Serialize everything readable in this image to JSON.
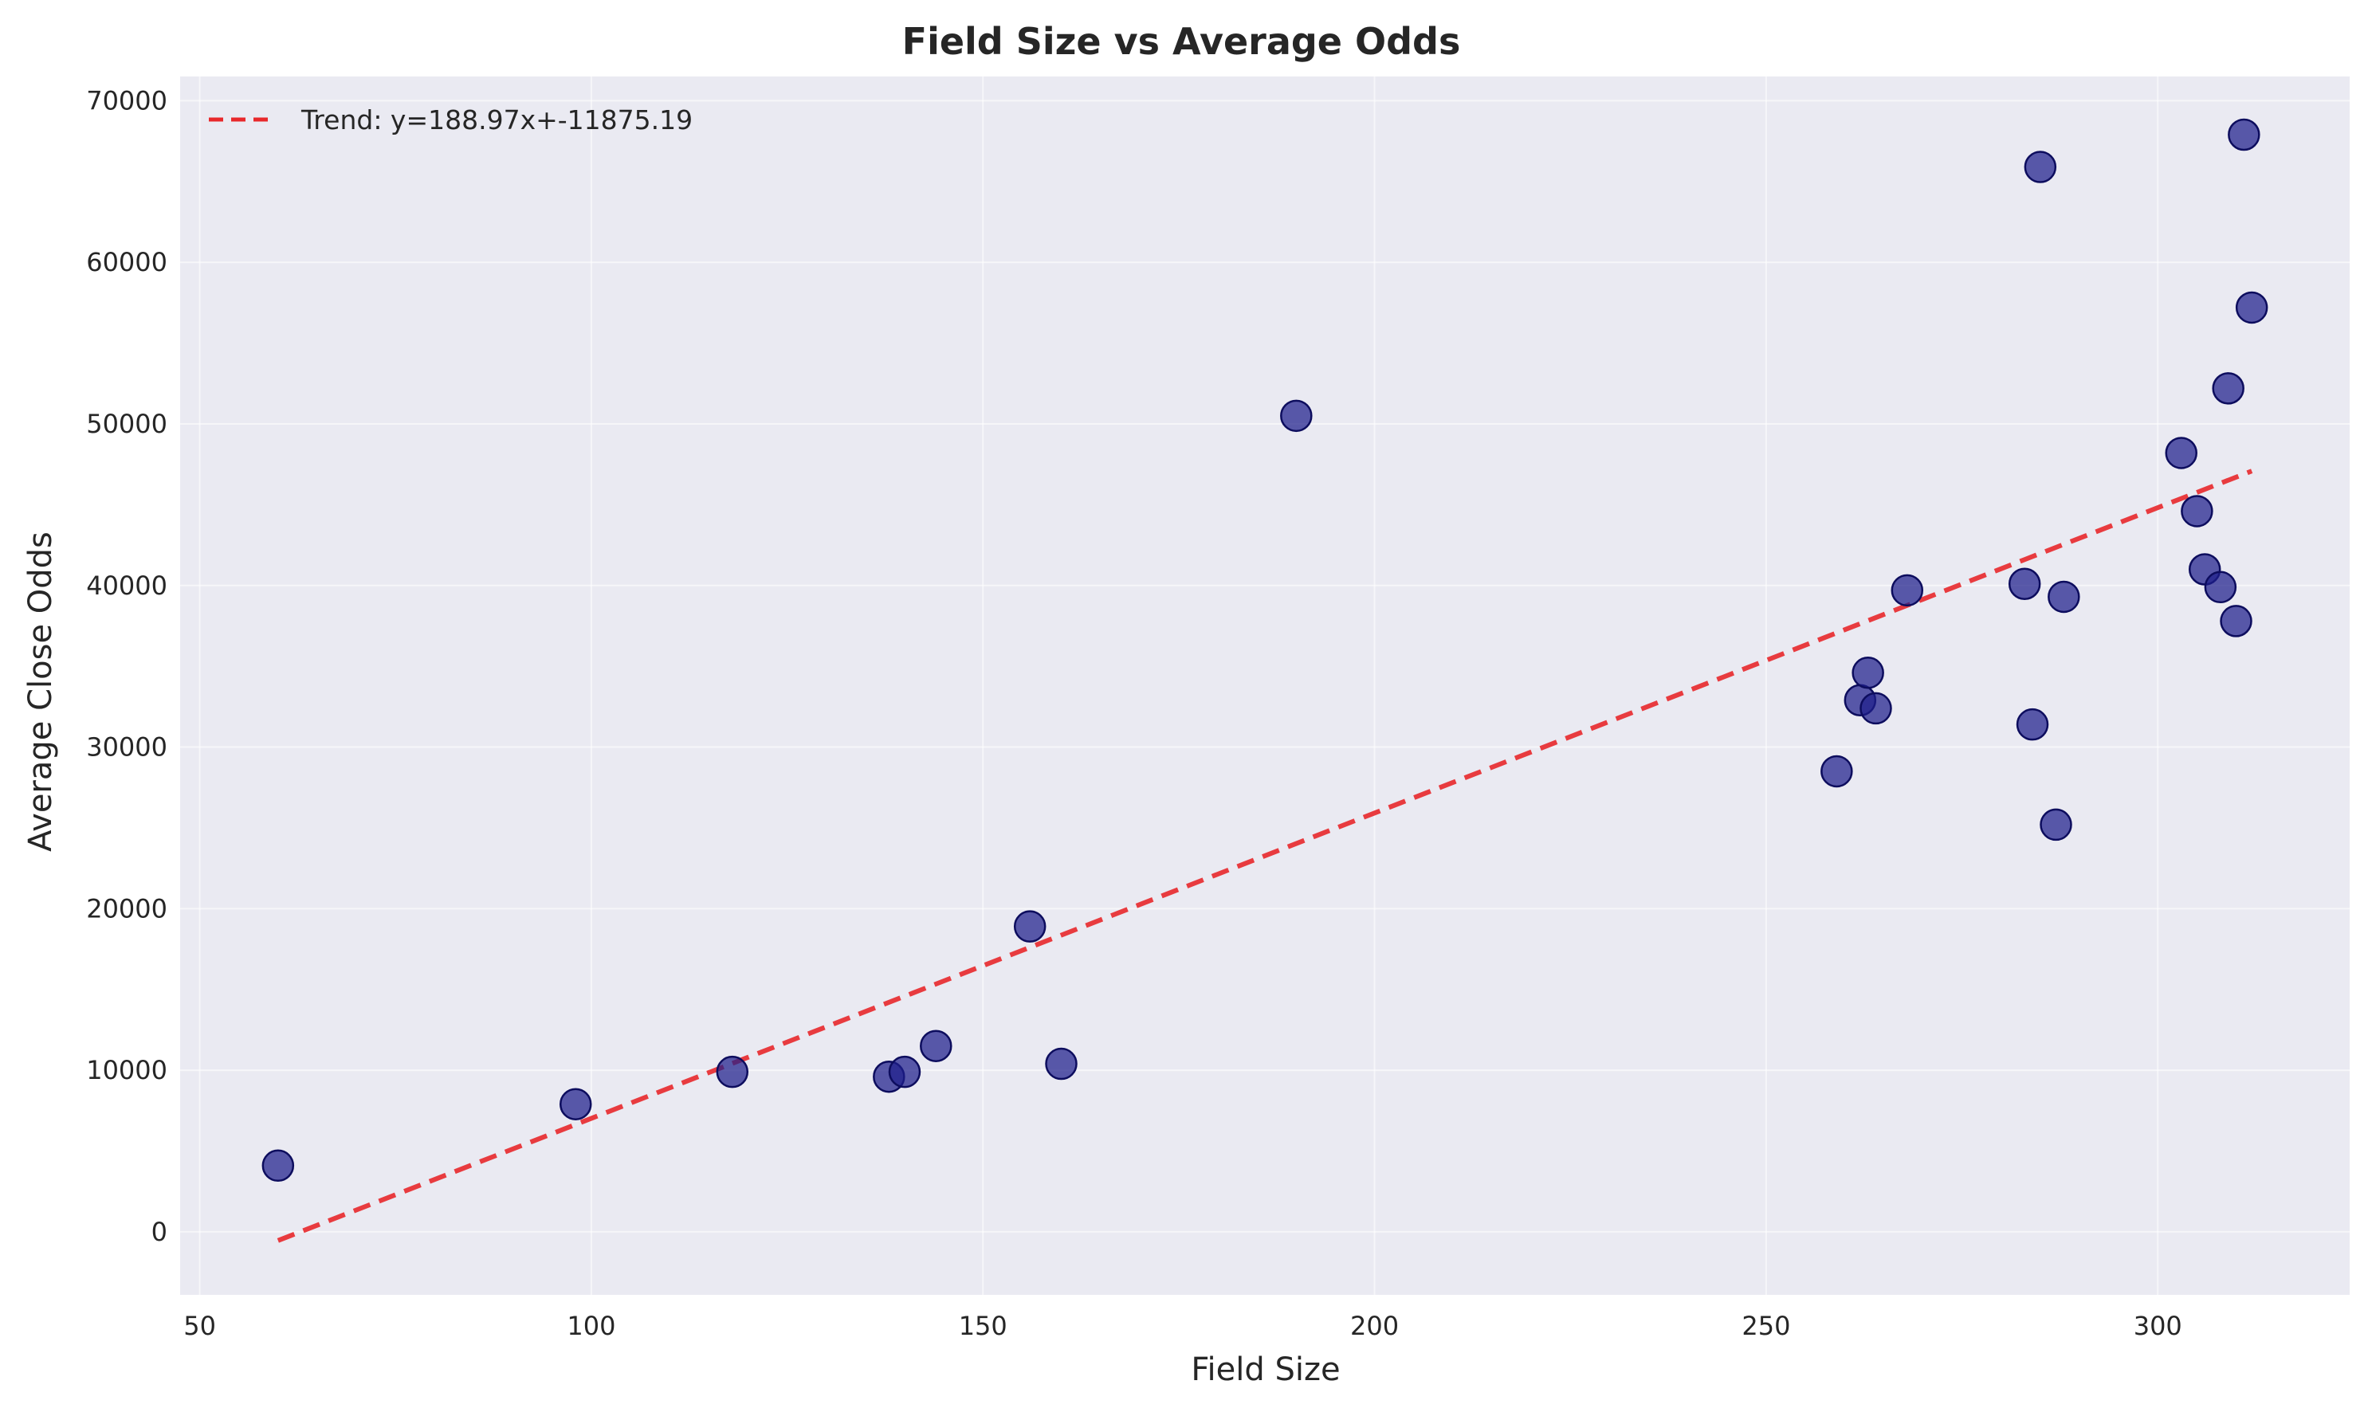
{
  "chart_data": {
    "type": "scatter",
    "title": "Field Size vs Average Odds",
    "xlabel": "Field Size",
    "ylabel": "Average Close Odds",
    "xlim": [
      47.5,
      324.5
    ],
    "ylim": [
      -3900,
      71500
    ],
    "xticks": [
      50,
      100,
      150,
      200,
      250,
      300
    ],
    "yticks": [
      0,
      10000,
      20000,
      30000,
      40000,
      50000,
      60000,
      70000
    ],
    "grid": true,
    "legend_position": "top-left",
    "series": [
      {
        "kind": "scatter",
        "color": "#1f1f8a",
        "points": [
          {
            "x": 60,
            "y": 4100
          },
          {
            "x": 98,
            "y": 7900
          },
          {
            "x": 118,
            "y": 9900
          },
          {
            "x": 138,
            "y": 9600
          },
          {
            "x": 140,
            "y": 9900
          },
          {
            "x": 144,
            "y": 11500
          },
          {
            "x": 156,
            "y": 18900
          },
          {
            "x": 160,
            "y": 10400
          },
          {
            "x": 190,
            "y": 50500
          },
          {
            "x": 259,
            "y": 28500
          },
          {
            "x": 262,
            "y": 32900
          },
          {
            "x": 263,
            "y": 34600
          },
          {
            "x": 264,
            "y": 32400
          },
          {
            "x": 268,
            "y": 39700
          },
          {
            "x": 283,
            "y": 40100
          },
          {
            "x": 284,
            "y": 31400
          },
          {
            "x": 285,
            "y": 65900
          },
          {
            "x": 287,
            "y": 25200
          },
          {
            "x": 288,
            "y": 39300
          },
          {
            "x": 303,
            "y": 48200
          },
          {
            "x": 305,
            "y": 44600
          },
          {
            "x": 306,
            "y": 41000
          },
          {
            "x": 308,
            "y": 39900
          },
          {
            "x": 309,
            "y": 52200
          },
          {
            "x": 310,
            "y": 37800
          },
          {
            "x": 311,
            "y": 67900
          },
          {
            "x": 312,
            "y": 57200
          }
        ]
      },
      {
        "kind": "trend-line",
        "name": "Trend: y=188.97x+-11875.19",
        "color": "#e8282b",
        "slope": 188.97,
        "intercept": -11875.19,
        "x_range": [
          60,
          312
        ]
      }
    ]
  }
}
